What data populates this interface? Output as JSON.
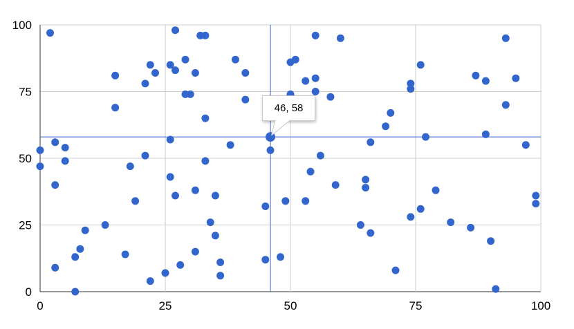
{
  "chart_data": {
    "type": "scatter",
    "title": "",
    "xlabel": "",
    "ylabel": "",
    "xlim": [
      0,
      100
    ],
    "ylim": [
      0,
      100
    ],
    "x_ticks": [
      "0",
      "25",
      "50",
      "75",
      "100"
    ],
    "y_ticks": [
      "0",
      "25",
      "50",
      "75",
      "100"
    ],
    "x_tick_values": [
      0,
      25,
      50,
      75,
      100
    ],
    "y_tick_values": [
      0,
      25,
      50,
      75,
      100
    ],
    "grid": true,
    "legend": "none",
    "points": [
      [
        2,
        97
      ],
      [
        27,
        98
      ],
      [
        32,
        96
      ],
      [
        33,
        96
      ],
      [
        55,
        96
      ],
      [
        60,
        95
      ],
      [
        93,
        95
      ],
      [
        29,
        87
      ],
      [
        39,
        87
      ],
      [
        51,
        87
      ],
      [
        50,
        86
      ],
      [
        22,
        85
      ],
      [
        26,
        85
      ],
      [
        76,
        85
      ],
      [
        27,
        83
      ],
      [
        23,
        82
      ],
      [
        31,
        82
      ],
      [
        41,
        82
      ],
      [
        15,
        81
      ],
      [
        87,
        81
      ],
      [
        95,
        80
      ],
      [
        55,
        80
      ],
      [
        53,
        79
      ],
      [
        89,
        79
      ],
      [
        21,
        78
      ],
      [
        74,
        78
      ],
      [
        74,
        76
      ],
      [
        55,
        75
      ],
      [
        29,
        74
      ],
      [
        30,
        74
      ],
      [
        50,
        74
      ],
      [
        58,
        73
      ],
      [
        41,
        72
      ],
      [
        93,
        70
      ],
      [
        15,
        69
      ],
      [
        70,
        67
      ],
      [
        33,
        65
      ],
      [
        69,
        62
      ],
      [
        89,
        59
      ],
      [
        77,
        58
      ],
      [
        3,
        56
      ],
      [
        26,
        57
      ],
      [
        66,
        56
      ],
      [
        38,
        55
      ],
      [
        97,
        55
      ],
      [
        5,
        54
      ],
      [
        0,
        53
      ],
      [
        46,
        53
      ],
      [
        21,
        51
      ],
      [
        56,
        51
      ],
      [
        5,
        49
      ],
      [
        33,
        49
      ],
      [
        0,
        47
      ],
      [
        18,
        47
      ],
      [
        54,
        45
      ],
      [
        26,
        43
      ],
      [
        65,
        42
      ],
      [
        3,
        40
      ],
      [
        59,
        40
      ],
      [
        65,
        39
      ],
      [
        31,
        38
      ],
      [
        79,
        38
      ],
      [
        27,
        36
      ],
      [
        35,
        36
      ],
      [
        99,
        36
      ],
      [
        19,
        34
      ],
      [
        49,
        34
      ],
      [
        53,
        34
      ],
      [
        99,
        33
      ],
      [
        45,
        32
      ],
      [
        76,
        31
      ],
      [
        74,
        28
      ],
      [
        34,
        26
      ],
      [
        82,
        26
      ],
      [
        13,
        25
      ],
      [
        64,
        25
      ],
      [
        86,
        24
      ],
      [
        9,
        23
      ],
      [
        66,
        22
      ],
      [
        35,
        21
      ],
      [
        90,
        19
      ],
      [
        8,
        16
      ],
      [
        31,
        15
      ],
      [
        17,
        14
      ],
      [
        7,
        13
      ],
      [
        48,
        13
      ],
      [
        45,
        12
      ],
      [
        36,
        11
      ],
      [
        28,
        10
      ],
      [
        3,
        9
      ],
      [
        71,
        8
      ],
      [
        25,
        7
      ],
      [
        36,
        6
      ],
      [
        22,
        4
      ],
      [
        7,
        0
      ],
      [
        91,
        1
      ]
    ],
    "selected": {
      "x": 46,
      "y": 58,
      "tooltip_label": "46, 58"
    },
    "crosshair": true,
    "colors": {
      "point": "#3366cc",
      "crosshair": "#3366cc",
      "grid": "#cccccc",
      "axis": "#333333",
      "tick_label": "#000000",
      "tooltip_bg": "#ffffff",
      "tooltip_border": "#c8c8c8",
      "tooltip_text": "#000000"
    }
  }
}
